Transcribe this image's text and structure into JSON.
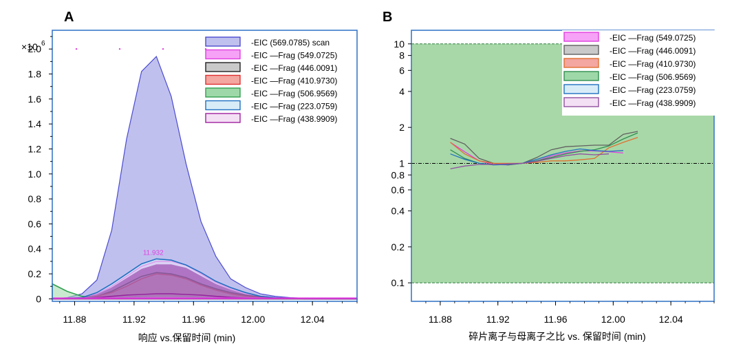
{
  "chart_data": [
    {
      "panel": "A",
      "type": "area",
      "xlabel": "响应 vs.保留时间 (min)",
      "ylabel": "",
      "multiplier_label": "×10",
      "multiplier_exp": "6",
      "xlim": [
        11.865,
        12.07
      ],
      "ylim": [
        -0.02,
        2.15
      ],
      "xticks": [
        11.88,
        11.92,
        11.96,
        12.0,
        12.04
      ],
      "xtick_labels": [
        "11.88",
        "11.92",
        "11.96",
        "12.00",
        "12.04"
      ],
      "yticks": [
        0,
        0.2,
        0.4,
        0.6,
        0.8,
        1.0,
        1.2,
        1.4,
        1.6,
        1.8,
        2.0
      ],
      "ytick_labels": [
        "0",
        "0.2",
        "0.4",
        "0.6",
        "0.8",
        "1.0",
        "1.2",
        "1.4",
        "1.6",
        "1.8",
        "2.0"
      ],
      "peak_annotation": {
        "text": "11.932",
        "x": 11.932,
        "y": 0.34
      },
      "legend_placement": "top-right",
      "series": [
        {
          "name": "-EIC  (569.0785) scan",
          "fill": "#c0c0ee",
          "stroke": "#4a4ad0",
          "x": [
            11.865,
            11.875,
            11.885,
            11.895,
            11.905,
            11.915,
            11.925,
            11.935,
            11.945,
            11.955,
            11.965,
            11.975,
            11.985,
            11.995,
            12.005,
            12.015,
            12.025,
            12.035,
            12.045,
            12.055,
            12.07
          ],
          "y": [
            0.0,
            0.01,
            0.04,
            0.15,
            0.55,
            1.28,
            1.82,
            1.94,
            1.62,
            1.08,
            0.62,
            0.34,
            0.16,
            0.09,
            0.04,
            0.02,
            0.01,
            0.005,
            0.0,
            0.0,
            0.0
          ]
        },
        {
          "name": "-EIC —Frag (549.0725)",
          "fill": "#f6a2f6",
          "stroke": "#e040e0",
          "x": [
            11.865,
            11.885,
            11.895,
            11.905,
            11.915,
            11.925,
            11.935,
            11.945,
            11.955,
            11.965,
            11.975,
            11.985,
            11.995,
            12.005,
            12.015,
            12.035,
            12.07
          ],
          "y": [
            0.0,
            0.01,
            0.04,
            0.1,
            0.18,
            0.26,
            0.3,
            0.3,
            0.27,
            0.2,
            0.13,
            0.08,
            0.04,
            0.02,
            0.01,
            0.0,
            0.0
          ]
        },
        {
          "name": "-EIC —Frag (446.0091)",
          "fill": "#c9c9c9",
          "stroke": "#202020",
          "x": [
            11.865,
            11.885,
            11.895,
            11.905,
            11.915,
            11.925,
            11.935,
            11.945,
            11.955,
            11.965,
            11.975,
            11.985,
            11.995,
            12.005,
            12.015,
            12.035,
            12.07
          ],
          "y": [
            0.0,
            0.005,
            0.02,
            0.06,
            0.12,
            0.18,
            0.21,
            0.2,
            0.17,
            0.12,
            0.08,
            0.05,
            0.03,
            0.015,
            0.008,
            0.0,
            0.0
          ]
        },
        {
          "name": "-EIC —Frag (410.9730)",
          "fill": "#f4a6a0",
          "stroke": "#e03030",
          "x": [
            11.865,
            11.885,
            11.895,
            11.905,
            11.915,
            11.925,
            11.935,
            11.945,
            11.955,
            11.965,
            11.975,
            11.985,
            11.995,
            12.005,
            12.015,
            12.035,
            12.07
          ],
          "y": [
            0.0,
            0.005,
            0.02,
            0.05,
            0.1,
            0.16,
            0.2,
            0.19,
            0.16,
            0.11,
            0.07,
            0.04,
            0.02,
            0.01,
            0.005,
            0.0,
            0.0
          ]
        },
        {
          "name": "-EIC —Frag (506.9569)",
          "fill": "#9ed8a8",
          "stroke": "#30a050",
          "x": [
            11.865,
            11.875,
            11.885,
            11.895,
            11.905,
            11.915,
            11.925,
            11.935,
            11.945,
            11.955,
            11.965,
            11.975,
            11.985,
            11.995,
            12.005,
            12.015,
            12.035,
            12.07
          ],
          "y": [
            0.12,
            0.06,
            0.02,
            0.01,
            0.01,
            0.015,
            0.02,
            0.025,
            0.025,
            0.02,
            0.015,
            0.01,
            0.006,
            0.004,
            0.002,
            0.0,
            0.0,
            0.0
          ]
        },
        {
          "name": "-EIC —Frag (223.0759)",
          "fill": "#d8ecf8",
          "stroke": "#2070c0",
          "x": [
            11.865,
            11.885,
            11.895,
            11.905,
            11.915,
            11.925,
            11.935,
            11.945,
            11.955,
            11.965,
            11.975,
            11.985,
            11.995,
            12.005,
            12.015,
            12.035,
            12.07
          ],
          "y": [
            0.0,
            0.01,
            0.05,
            0.12,
            0.2,
            0.28,
            0.32,
            0.31,
            0.27,
            0.21,
            0.14,
            0.09,
            0.05,
            0.02,
            0.01,
            0.0,
            0.0
          ]
        },
        {
          "name": "-EIC —Frag (438.9909)",
          "fill": "#f4e0f4",
          "stroke": "#a020a0",
          "x": [
            11.865,
            11.885,
            11.895,
            11.905,
            11.915,
            11.925,
            11.935,
            11.945,
            11.955,
            11.965,
            11.975,
            11.985,
            11.995,
            12.005,
            12.015,
            12.035,
            12.07
          ],
          "y": [
            0.0,
            0.003,
            0.01,
            0.02,
            0.03,
            0.035,
            0.04,
            0.04,
            0.035,
            0.03,
            0.02,
            0.012,
            0.007,
            0.004,
            0.002,
            0.0,
            0.0
          ]
        }
      ]
    },
    {
      "panel": "B",
      "type": "line",
      "yscale": "log",
      "xlabel": "碎片离子与母离子之比 vs. 保留时间 (min)",
      "ylabel": "",
      "xlim": [
        11.86,
        12.07
      ],
      "ylim": [
        0.07,
        13
      ],
      "xticks": [
        11.88,
        11.92,
        11.96,
        12.0,
        12.04
      ],
      "xtick_labels": [
        "11.88",
        "11.92",
        "11.96",
        "12.00",
        "12.04"
      ],
      "yticks": [
        0.1,
        0.2,
        0.4,
        0.6,
        0.8,
        1,
        2,
        4,
        6,
        8,
        10
      ],
      "ytick_labels": [
        "0.1",
        "0.2",
        "0.4",
        "0.6",
        "0.8",
        "1",
        "2",
        "4",
        "6",
        "8",
        "10"
      ],
      "band": {
        "ymin": 0.1,
        "ymax": 10,
        "fill": "#a8d8a8"
      },
      "reference_line": 1,
      "legend_placement": "top-right",
      "series": [
        {
          "name": "-EIC —Frag (549.0725)",
          "fill": "#f6a2f6",
          "stroke": "#e040e0",
          "x": [
            11.887,
            11.897,
            11.907,
            11.917,
            11.927,
            11.937,
            11.947,
            11.957,
            11.967,
            11.977,
            11.987,
            11.997,
            12.007
          ],
          "y": [
            1.5,
            1.25,
            1.05,
            0.98,
            0.97,
            1.0,
            1.05,
            1.15,
            1.22,
            1.27,
            1.27,
            1.25,
            1.22
          ]
        },
        {
          "name": "-EIC —Frag (446.0091)",
          "fill": "#c9c9c9",
          "stroke": "#606060",
          "x": [
            11.887,
            11.897,
            11.907,
            11.917,
            11.927,
            11.937,
            11.947,
            11.957,
            11.967,
            11.977,
            11.987,
            11.997,
            12.007,
            12.017
          ],
          "y": [
            1.62,
            1.45,
            1.1,
            1.0,
            0.97,
            1.0,
            1.12,
            1.3,
            1.38,
            1.4,
            1.42,
            1.42,
            1.75,
            1.85
          ]
        },
        {
          "name": "-EIC —Frag (410.9730)",
          "fill": "#f4a6a0",
          "stroke": "#e07030",
          "x": [
            11.887,
            11.897,
            11.907,
            11.917,
            11.927,
            11.937,
            11.947,
            11.957,
            11.967,
            11.977,
            11.987,
            11.997,
            12.007,
            12.017
          ],
          "y": [
            1.5,
            1.2,
            1.05,
            1.0,
            1.0,
            1.0,
            1.02,
            1.05,
            1.05,
            1.07,
            1.1,
            1.35,
            1.5,
            1.65
          ]
        },
        {
          "name": "-EIC —Frag (506.9569)",
          "fill": "#9ed8a8",
          "stroke": "#2f8f4f",
          "x": [
            11.887,
            11.897,
            11.907,
            11.917,
            11.927,
            11.937,
            11.947,
            11.957,
            11.967,
            11.977,
            11.987,
            11.997,
            12.007,
            12.017
          ],
          "y": [
            1.3,
            1.1,
            1.0,
            0.98,
            0.98,
            1.0,
            1.05,
            1.12,
            1.2,
            1.26,
            1.3,
            1.4,
            1.6,
            1.8
          ]
        },
        {
          "name": "-EIC —Frag (223.0759)",
          "fill": "#d8ecf8",
          "stroke": "#2070c0",
          "x": [
            11.887,
            11.897,
            11.907,
            11.917,
            11.927,
            11.937,
            11.947,
            11.957,
            11.967,
            11.977,
            11.987,
            11.997,
            12.007
          ],
          "y": [
            1.2,
            1.08,
            1.0,
            0.97,
            0.98,
            1.0,
            1.08,
            1.18,
            1.26,
            1.32,
            1.28,
            1.26,
            1.28
          ]
        },
        {
          "name": "-EIC —Frag (438.9909)",
          "fill": "#f4e0f4",
          "stroke": "#9050a0",
          "x": [
            11.887,
            11.897,
            11.907,
            11.917,
            11.927,
            11.937,
            11.947,
            11.957,
            11.967,
            11.977,
            11.987,
            11.997
          ],
          "y": [
            0.9,
            0.95,
            0.98,
            0.98,
            0.99,
            1.0,
            1.04,
            1.1,
            1.16,
            1.2,
            1.18,
            1.2
          ]
        }
      ]
    }
  ]
}
